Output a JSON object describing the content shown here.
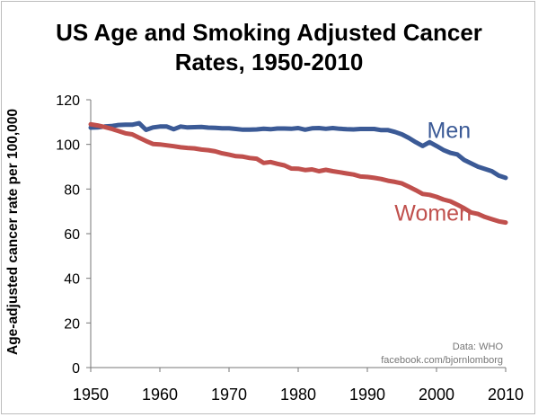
{
  "chart_data": {
    "type": "line",
    "title_lines": [
      "US Age and Smoking Adjusted Cancer",
      "Rates, 1950-2010"
    ],
    "xlabel": "",
    "ylabel": "Age-adjusted cancer rate per 100,000",
    "xlim": [
      1950,
      2010
    ],
    "ylim": [
      0,
      120
    ],
    "x_ticks": [
      "1950",
      "1960",
      "1970",
      "1980",
      "1990",
      "2000",
      "2010"
    ],
    "y_ticks": [
      "0",
      "20",
      "40",
      "60",
      "80",
      "100",
      "120"
    ],
    "grid": false,
    "legend": "inline labels at line ends",
    "series": [
      {
        "name": "Men",
        "color": "#3b5a96",
        "x": [
          1950,
          1951,
          1952,
          1953,
          1954,
          1955,
          1956,
          1957,
          1958,
          1959,
          1960,
          1961,
          1962,
          1963,
          1964,
          1965,
          1966,
          1967,
          1968,
          1969,
          1970,
          1971,
          1972,
          1973,
          1974,
          1975,
          1976,
          1977,
          1978,
          1979,
          1980,
          1981,
          1982,
          1983,
          1984,
          1985,
          1986,
          1987,
          1988,
          1989,
          1990,
          1991,
          1992,
          1993,
          1994,
          1995,
          1996,
          1997,
          1998,
          1999,
          2000,
          2001,
          2002,
          2003,
          2004,
          2005,
          2006,
          2007,
          2008,
          2009,
          2010
        ],
        "values": [
          107.5,
          107.6,
          108,
          108.2,
          108.7,
          108.8,
          108.8,
          109.5,
          106.5,
          107.6,
          108,
          108,
          106.8,
          108,
          107.6,
          107.7,
          107.8,
          107.5,
          107.4,
          107.2,
          107.2,
          106.9,
          106.6,
          106.6,
          106.7,
          107,
          106.8,
          107.1,
          107.1,
          107,
          107.3,
          106.6,
          107.2,
          107.3,
          107,
          107.3,
          107,
          106.8,
          106.7,
          106.9,
          106.9,
          106.9,
          106.4,
          106.4,
          105.6,
          104.5,
          102.9,
          101,
          99.3,
          101,
          99.3,
          97.5,
          96.2,
          95.5,
          93,
          91.5,
          90,
          89,
          88,
          86,
          85
        ]
      },
      {
        "name": "Women",
        "color": "#c0504d",
        "x": [
          1950,
          1951,
          1952,
          1953,
          1954,
          1955,
          1956,
          1957,
          1958,
          1959,
          1960,
          1961,
          1962,
          1963,
          1964,
          1965,
          1966,
          1967,
          1968,
          1969,
          1970,
          1971,
          1972,
          1973,
          1974,
          1975,
          1976,
          1977,
          1978,
          1979,
          1980,
          1981,
          1982,
          1983,
          1984,
          1985,
          1986,
          1987,
          1988,
          1989,
          1990,
          1991,
          1992,
          1993,
          1994,
          1995,
          1996,
          1997,
          1998,
          1999,
          2000,
          2001,
          2002,
          2003,
          2004,
          2005,
          2006,
          2007,
          2008,
          2009,
          2010
        ],
        "values": [
          109,
          108.5,
          107.8,
          107,
          106,
          105,
          104.5,
          103,
          101.5,
          100.2,
          100,
          99.6,
          99.2,
          98.7,
          98.4,
          98.2,
          97.7,
          97.4,
          96.9,
          96,
          95.4,
          94.7,
          94.5,
          93.9,
          93.6,
          91.7,
          92.1,
          91.3,
          90.6,
          89.2,
          89.1,
          88.5,
          88.8,
          88,
          88.6,
          88,
          87.5,
          87,
          86.5,
          85.6,
          85.4,
          85,
          84.5,
          83.7,
          83.2,
          82.5,
          81,
          79.5,
          77.8,
          77.4,
          76.5,
          75.3,
          74.5,
          73,
          71.4,
          69.5,
          68.8,
          67.5,
          66.5,
          65.5,
          65
        ]
      }
    ]
  },
  "credits": [
    "Data: WHO",
    "facebook.com/bjornlomborg"
  ]
}
